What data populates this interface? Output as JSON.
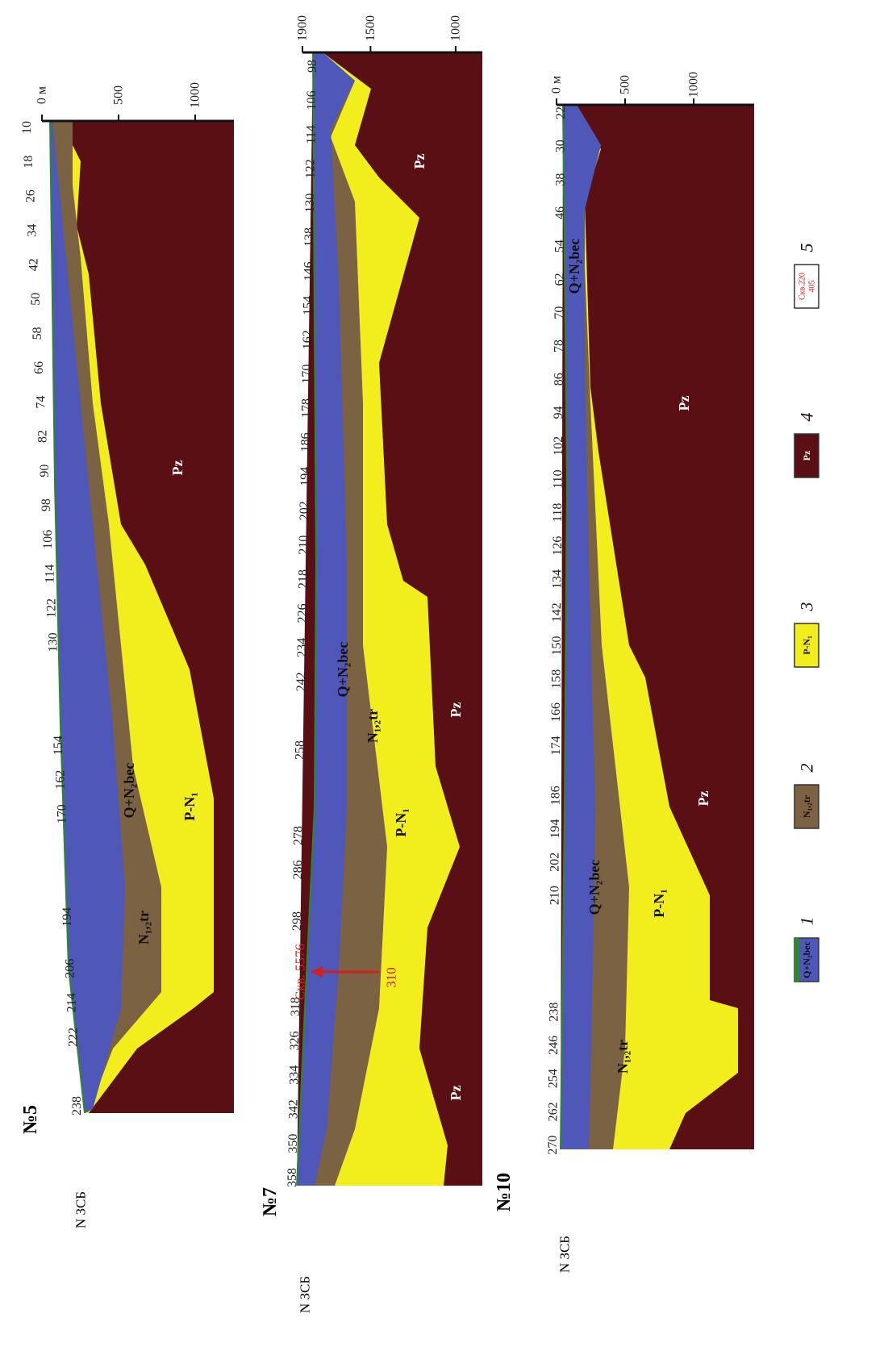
{
  "profiles": [
    {
      "title": "№5",
      "origin_label": "N ЗСБ",
      "stations": [
        10,
        18,
        26,
        34,
        42,
        50,
        58,
        66,
        74,
        82,
        90,
        98,
        106,
        114,
        122,
        130,
        154,
        162,
        170,
        194,
        206,
        214,
        222,
        238
      ],
      "depth_ticks": [
        {
          "value": 0,
          "label": "0 м"
        },
        500,
        1000
      ],
      "layer_labels": [
        "Pz",
        "Q+N₂bec",
        "P-N₁",
        "N₁,₂tr"
      ]
    },
    {
      "title": "№7",
      "origin_label": "N ЗСБ",
      "stations": [
        98,
        106,
        114,
        122,
        130,
        138,
        146,
        154,
        162,
        170,
        178,
        186,
        194,
        202,
        210,
        218,
        226,
        234,
        242,
        258,
        278,
        286,
        298,
        318,
        326,
        334,
        342,
        350,
        358
      ],
      "depth_ticks": [
        1900,
        1500,
        1000
      ],
      "layer_labels": [
        "Pz",
        "Pz",
        "Pz",
        "Q+N₂bec",
        "N₁,₂tr",
        "P-N₁"
      ]
    },
    {
      "title": "№10",
      "origin_label": "N ЗСБ",
      "stations": [
        22,
        30,
        38,
        46,
        54,
        62,
        70,
        78,
        86,
        94,
        102,
        110,
        118,
        126,
        134,
        142,
        150,
        158,
        166,
        174,
        186,
        194,
        202,
        210,
        238,
        246,
        254,
        262,
        270
      ],
      "depth_ticks": [
        {
          "value": 0,
          "label": "0 м"
        },
        500,
        1000
      ],
      "layer_labels": [
        "Q+N₂bec",
        "Pz",
        "Pz",
        "Q+N₂bec",
        "P-N₁",
        "N₁,₂tr"
      ]
    }
  ],
  "borehole": {
    "label": "Скв. 5576",
    "station": "310"
  },
  "legend": [
    {
      "number": "1",
      "label": "Q+N₂bec"
    },
    {
      "number": "2",
      "label": "N₁,₂tr"
    },
    {
      "number": "3",
      "label": "P-N₁"
    },
    {
      "number": "4",
      "label": "Pz"
    },
    {
      "number": "5",
      "label": "Скв.220",
      "sublabel": "405"
    }
  ]
}
